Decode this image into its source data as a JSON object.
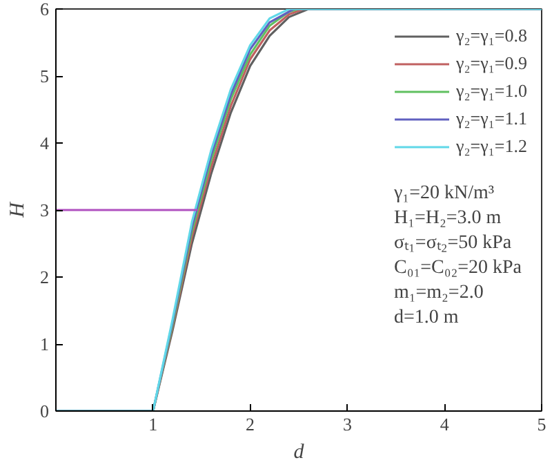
{
  "chart_data": {
    "type": "line",
    "xlabel": "d",
    "ylabel": "H",
    "xlim": [
      0,
      5
    ],
    "ylim": [
      0,
      6
    ],
    "xticks": [
      1,
      2,
      3,
      4,
      5
    ],
    "yticks": [
      0,
      1,
      2,
      3,
      4,
      5,
      6
    ],
    "grid": false,
    "legend": "top right",
    "line_style": "solid",
    "marker": "none",
    "series": [
      {
        "name": "γ₂=γ₁=0.8",
        "color": "#606060",
        "x": [
          0,
          1,
          1.2,
          1.4,
          1.6,
          1.8,
          2.0,
          2.2,
          2.4,
          2.6,
          5
        ],
        "values": [
          0,
          0,
          1.2,
          2.5,
          3.55,
          4.45,
          5.15,
          5.6,
          5.88,
          6,
          6
        ]
      },
      {
        "name": "γ₂=γ₁=0.9",
        "color": "#c06060",
        "x": [
          0,
          1,
          1.2,
          1.4,
          1.6,
          1.8,
          2.0,
          2.2,
          2.4,
          2.55,
          5
        ],
        "values": [
          0,
          0,
          1.25,
          2.6,
          3.65,
          4.55,
          5.25,
          5.68,
          5.92,
          6,
          6
        ]
      },
      {
        "name": "γ₂=γ₁=1.0",
        "color": "#60c060",
        "x": [
          0,
          1,
          1.2,
          1.4,
          1.6,
          1.8,
          2.0,
          2.2,
          2.4,
          2.5,
          5
        ],
        "values": [
          0,
          0,
          1.28,
          2.68,
          3.75,
          4.65,
          5.32,
          5.75,
          5.96,
          6,
          6
        ]
      },
      {
        "name": "γ₂=γ₁=1.1",
        "color": "#6060c0",
        "x": [
          0,
          1,
          1.2,
          1.4,
          1.6,
          1.8,
          2.0,
          2.2,
          2.45,
          5
        ],
        "values": [
          0,
          0,
          1.32,
          2.75,
          3.83,
          4.72,
          5.4,
          5.8,
          6,
          6
        ]
      },
      {
        "name": "γ₂=γ₁=1.2",
        "color": "#60d8e8",
        "x": [
          0,
          1,
          1.2,
          1.4,
          1.6,
          1.8,
          2.0,
          2.2,
          2.4,
          5
        ],
        "values": [
          0,
          0,
          1.36,
          2.82,
          3.9,
          4.8,
          5.46,
          5.86,
          6,
          6
        ]
      },
      {
        "color": "#b050c0",
        "x": [
          0,
          1.46
        ],
        "values": [
          3,
          3
        ]
      }
    ],
    "annotations": [
      "γ₁=20 kN/m³",
      "H₁=H₂=3.0 m",
      "σₜ₁=σₜ₂=50 kPa",
      "C₀₁=C₀₂=20 kPa",
      "m₁=m₂=2.0",
      "d=1.0 m"
    ]
  }
}
